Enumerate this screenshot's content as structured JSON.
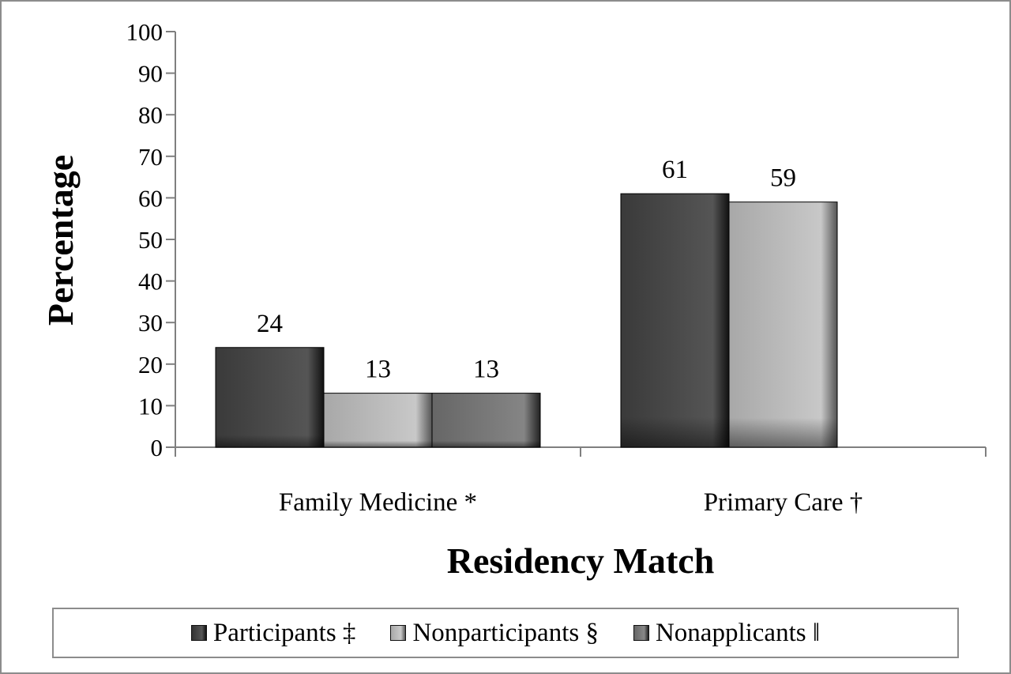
{
  "chart_data": {
    "type": "bar",
    "title": "",
    "xlabel": "Residency Match",
    "ylabel": "Percentage",
    "ylim": [
      0,
      100
    ],
    "yticks": [
      0,
      10,
      20,
      30,
      40,
      50,
      60,
      70,
      80,
      90,
      100
    ],
    "categories": [
      "Family Medicine *",
      "Primary Care †"
    ],
    "series": [
      {
        "name": "Participants ‡",
        "values": [
          24,
          61
        ],
        "color": "#4a4a4a"
      },
      {
        "name": "Nonparticipants §",
        "values": [
          13,
          59
        ],
        "color": "#bdbdbd"
      },
      {
        "name": "Nonapplicants ‖",
        "values": [
          13,
          null
        ],
        "color": "#787878"
      }
    ],
    "data_labels": true,
    "grid": false,
    "legend_position": "bottom"
  }
}
